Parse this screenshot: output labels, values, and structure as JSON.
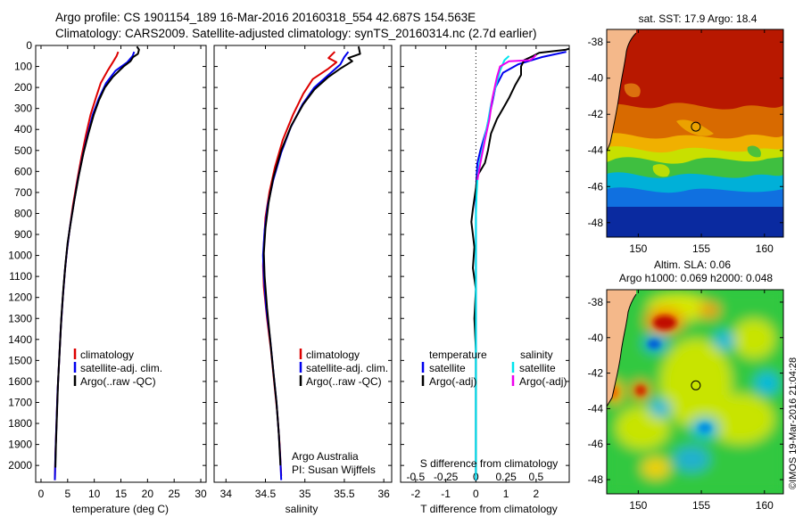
{
  "header": {
    "line1": "Argo profile: CS 1901154_189 16-Mar-2016 20160318_554 42.687S 154.563E",
    "line2": "Climatology: CARS2009. Satellite-adjusted climatology: synTS_20160314.nc (2.7d earlier)"
  },
  "colors": {
    "climatology": "#dd0000",
    "satellite": "#0000ee",
    "argo": "#000000",
    "s_satellite": "#00e5ee",
    "s_argo": "#ee00ee"
  },
  "chart_data": [
    {
      "type": "line",
      "title": "",
      "xlabel": "temperature (deg C)",
      "xlim": [
        -1,
        31
      ],
      "ylim": [
        2080,
        0
      ],
      "xticks": [
        "0",
        "5",
        "10",
        "15",
        "20",
        "25",
        "30"
      ],
      "yticks": [
        "0",
        "100",
        "200",
        "300",
        "400",
        "500",
        "600",
        "700",
        "800",
        "900",
        "1000",
        "1100",
        "1200",
        "1300",
        "1400",
        "1500",
        "1600",
        "1700",
        "1800",
        "1900",
        "2000"
      ],
      "legend": [
        "climatology",
        "satellite-adj. clim.",
        "Argo(..raw -QC)"
      ],
      "series": [
        {
          "name": "climatology",
          "color": "#dd0000",
          "points": [
            [
              14.5,
              30
            ],
            [
              14.2,
              50
            ],
            [
              13.5,
              80
            ],
            [
              12.5,
              120
            ],
            [
              11.2,
              180
            ],
            [
              10.3,
              250
            ],
            [
              9.3,
              330
            ],
            [
              8.4,
              430
            ],
            [
              7.6,
              530
            ],
            [
              6.8,
              640
            ],
            [
              6.0,
              760
            ],
            [
              5.4,
              870
            ],
            [
              4.9,
              970
            ],
            [
              4.5,
              1070
            ],
            [
              4.1,
              1200
            ],
            [
              3.7,
              1350
            ],
            [
              3.4,
              1500
            ],
            [
              3.1,
              1650
            ],
            [
              2.9,
              1800
            ],
            [
              2.7,
              1950
            ],
            [
              2.6,
              2070
            ]
          ]
        },
        {
          "name": "satellite-adj. clim.",
          "color": "#0000ee",
          "points": [
            [
              17.5,
              30
            ],
            [
              17.2,
              50
            ],
            [
              16.2,
              80
            ],
            [
              14.0,
              120
            ],
            [
              12.2,
              180
            ],
            [
              10.9,
              250
            ],
            [
              9.7,
              330
            ],
            [
              8.7,
              430
            ],
            [
              7.8,
              530
            ],
            [
              6.9,
              640
            ],
            [
              6.1,
              760
            ],
            [
              5.4,
              870
            ],
            [
              4.9,
              970
            ],
            [
              4.5,
              1070
            ],
            [
              4.1,
              1200
            ],
            [
              3.7,
              1350
            ],
            [
              3.4,
              1500
            ],
            [
              3.1,
              1650
            ],
            [
              2.9,
              1800
            ],
            [
              2.7,
              1950
            ],
            [
              2.6,
              2070
            ]
          ]
        },
        {
          "name": "Argo(..raw -QC)",
          "color": "#000000",
          "points": [
            [
              18.0,
              5
            ],
            [
              18.4,
              20
            ],
            [
              18.2,
              40
            ],
            [
              17.3,
              55
            ],
            [
              16.8,
              75
            ],
            [
              15.5,
              100
            ],
            [
              13.5,
              150
            ],
            [
              12.0,
              200
            ],
            [
              10.9,
              260
            ],
            [
              9.9,
              330
            ],
            [
              8.9,
              420
            ],
            [
              8.0,
              510
            ],
            [
              7.1,
              620
            ],
            [
              6.3,
              730
            ],
            [
              5.6,
              840
            ],
            [
              5.0,
              940
            ],
            [
              4.6,
              1040
            ],
            [
              4.2,
              1160
            ],
            [
              3.8,
              1300
            ],
            [
              3.5,
              1450
            ],
            [
              3.2,
              1600
            ],
            [
              3.0,
              1750
            ],
            [
              2.8,
              1900
            ],
            [
              2.7,
              2010
            ]
          ]
        }
      ]
    },
    {
      "type": "line",
      "title": "",
      "xlabel": "salinity",
      "xlim": [
        33.85,
        36.1
      ],
      "ylim": [
        2080,
        0
      ],
      "xticks": [
        "34",
        "34.5",
        "35",
        "35.5",
        "36"
      ],
      "legend": [
        "climatology",
        "satellite-adj. clim.",
        "Argo(..raw -QC)"
      ],
      "annotation_line1": "Argo Australia",
      "annotation_line2": "PI: Susan Wijffels",
      "series": [
        {
          "name": "climatology",
          "color": "#dd0000",
          "points": [
            [
              35.38,
              30
            ],
            [
              35.3,
              60
            ],
            [
              35.4,
              80
            ],
            [
              35.3,
              110
            ],
            [
              35.1,
              160
            ],
            [
              34.98,
              230
            ],
            [
              34.85,
              330
            ],
            [
              34.72,
              450
            ],
            [
              34.62,
              580
            ],
            [
              34.55,
              700
            ],
            [
              34.5,
              820
            ],
            [
              34.48,
              950
            ],
            [
              34.47,
              1050
            ],
            [
              34.48,
              1150
            ],
            [
              34.52,
              1300
            ],
            [
              34.57,
              1450
            ],
            [
              34.61,
              1600
            ],
            [
              34.65,
              1750
            ],
            [
              34.68,
              1900
            ],
            [
              34.7,
              2050
            ]
          ]
        },
        {
          "name": "satellite-adj. clim.",
          "color": "#0000ee",
          "points": [
            [
              35.55,
              30
            ],
            [
              35.5,
              55
            ],
            [
              35.45,
              90
            ],
            [
              35.3,
              140
            ],
            [
              35.12,
              200
            ],
            [
              34.97,
              280
            ],
            [
              34.82,
              390
            ],
            [
              34.7,
              510
            ],
            [
              34.6,
              640
            ],
            [
              34.53,
              760
            ],
            [
              34.49,
              880
            ],
            [
              34.47,
              1000
            ],
            [
              34.48,
              1100
            ],
            [
              34.51,
              1250
            ],
            [
              34.56,
              1400
            ],
            [
              34.6,
              1550
            ],
            [
              34.64,
              1700
            ],
            [
              34.67,
              1850
            ],
            [
              34.69,
              1980
            ],
            [
              34.7,
              2070
            ]
          ]
        },
        {
          "name": "Argo(..raw -QC)",
          "color": "#000000",
          "points": [
            [
              35.68,
              5
            ],
            [
              35.7,
              40
            ],
            [
              35.55,
              60
            ],
            [
              35.6,
              75
            ],
            [
              35.45,
              110
            ],
            [
              35.3,
              150
            ],
            [
              35.12,
              210
            ],
            [
              34.98,
              280
            ],
            [
              34.83,
              380
            ],
            [
              34.7,
              500
            ],
            [
              34.6,
              630
            ],
            [
              34.54,
              750
            ],
            [
              34.5,
              870
            ],
            [
              34.48,
              990
            ],
            [
              34.49,
              1100
            ],
            [
              34.52,
              1250
            ],
            [
              34.56,
              1400
            ],
            [
              34.6,
              1550
            ],
            [
              34.64,
              1700
            ],
            [
              34.67,
              1850
            ],
            [
              34.69,
              2000
            ]
          ]
        }
      ]
    },
    {
      "type": "line",
      "title": "",
      "xlabel": "T difference from climatology",
      "xlabel_top": "S difference from climatology",
      "xlim": [
        -2.5,
        3.1
      ],
      "ylim": [
        2080,
        0
      ],
      "xticks": [
        "-2",
        "-1",
        "0",
        "1",
        "2"
      ],
      "xticks_top": [
        "-0.5",
        "-0.25",
        "0",
        "0.25",
        "0.5"
      ],
      "legend_t_title": "temperature",
      "legend_s_title": "salinity",
      "legend": [
        "satellite",
        "Argo(-adj)",
        "satellite",
        "Argo(-adj)"
      ],
      "series": [
        {
          "name": "temperature satellite",
          "color": "#0000ee",
          "points": [
            [
              3.0,
              30
            ],
            [
              2.2,
              55
            ],
            [
              1.4,
              90
            ],
            [
              0.9,
              130
            ],
            [
              0.65,
              200
            ],
            [
              0.5,
              300
            ],
            [
              0.35,
              400
            ],
            [
              0.15,
              500
            ],
            [
              0.05,
              560
            ],
            [
              0.02,
              640
            ],
            [
              0.0,
              760
            ],
            [
              0.0,
              2070
            ]
          ]
        },
        {
          "name": "temperature Argo(-adj)",
          "color": "#000000",
          "points": [
            [
              3.3,
              5
            ],
            [
              3.0,
              20
            ],
            [
              2.1,
              35
            ],
            [
              1.9,
              50
            ],
            [
              1.6,
              70
            ],
            [
              1.5,
              100
            ],
            [
              1.5,
              140
            ],
            [
              1.3,
              190
            ],
            [
              1.1,
              250
            ],
            [
              0.9,
              300
            ],
            [
              0.7,
              350
            ],
            [
              0.5,
              420
            ],
            [
              0.4,
              500
            ],
            [
              0.3,
              560
            ],
            [
              0.05,
              620
            ],
            [
              0.0,
              680
            ],
            [
              -0.1,
              780
            ],
            [
              -0.15,
              840
            ],
            [
              -0.1,
              900
            ],
            [
              -0.05,
              960
            ],
            [
              -0.1,
              1060
            ],
            [
              0.0,
              1160
            ],
            [
              -0.05,
              1300
            ],
            [
              0.0,
              1450
            ],
            [
              0.0,
              2050
            ]
          ]
        },
        {
          "name": "salinity satellite",
          "color": "#00e5ee",
          "points": [
            [
              1.1,
              50
            ],
            [
              0.95,
              70
            ],
            [
              0.8,
              120
            ],
            [
              0.65,
              200
            ],
            [
              0.5,
              280
            ],
            [
              0.38,
              380
            ],
            [
              0.25,
              470
            ],
            [
              0.12,
              560
            ],
            [
              0.05,
              640
            ],
            [
              0.02,
              720
            ],
            [
              0.0,
              820
            ],
            [
              0.0,
              2070
            ]
          ]
        },
        {
          "name": "salinity Argo(-adj)",
          "color": "#ee00ee",
          "points": [
            [
              2.0,
              45
            ],
            [
              1.9,
              60
            ],
            [
              1.8,
              70
            ],
            [
              1.1,
              75
            ],
            [
              0.8,
              100
            ],
            [
              0.7,
              150
            ],
            [
              0.55,
              250
            ],
            [
              0.45,
              350
            ],
            [
              0.3,
              450
            ],
            [
              0.15,
              560
            ],
            [
              0.05,
              640
            ]
          ]
        }
      ]
    },
    {
      "type": "heatmap",
      "title": "sat. SST: 17.9 Argo: 18.4",
      "xticks": [
        "150",
        "155",
        "160"
      ],
      "yticks": [
        "-38",
        "-40",
        "-42",
        "-44",
        "-46",
        "-48"
      ],
      "xlim": [
        147.5,
        161.5
      ],
      "ylim": [
        -48.8,
        -37.3
      ],
      "marker": [
        154.563,
        -42.687
      ]
    },
    {
      "type": "heatmap",
      "title_line1": "Altim. SLA: 0.06",
      "title_line2": "Argo h1000: 0.069 h2000: 0.048",
      "xticks": [
        "150",
        "155",
        "160"
      ],
      "yticks": [
        "-38",
        "-40",
        "-42",
        "-44",
        "-46",
        "-48"
      ],
      "xlim": [
        147.5,
        161.5
      ],
      "ylim": [
        -48.8,
        -37.3
      ],
      "marker": [
        154.563,
        -42.687
      ]
    }
  ],
  "credit": "©IMOS 19-Mar-2016 21:04:28"
}
